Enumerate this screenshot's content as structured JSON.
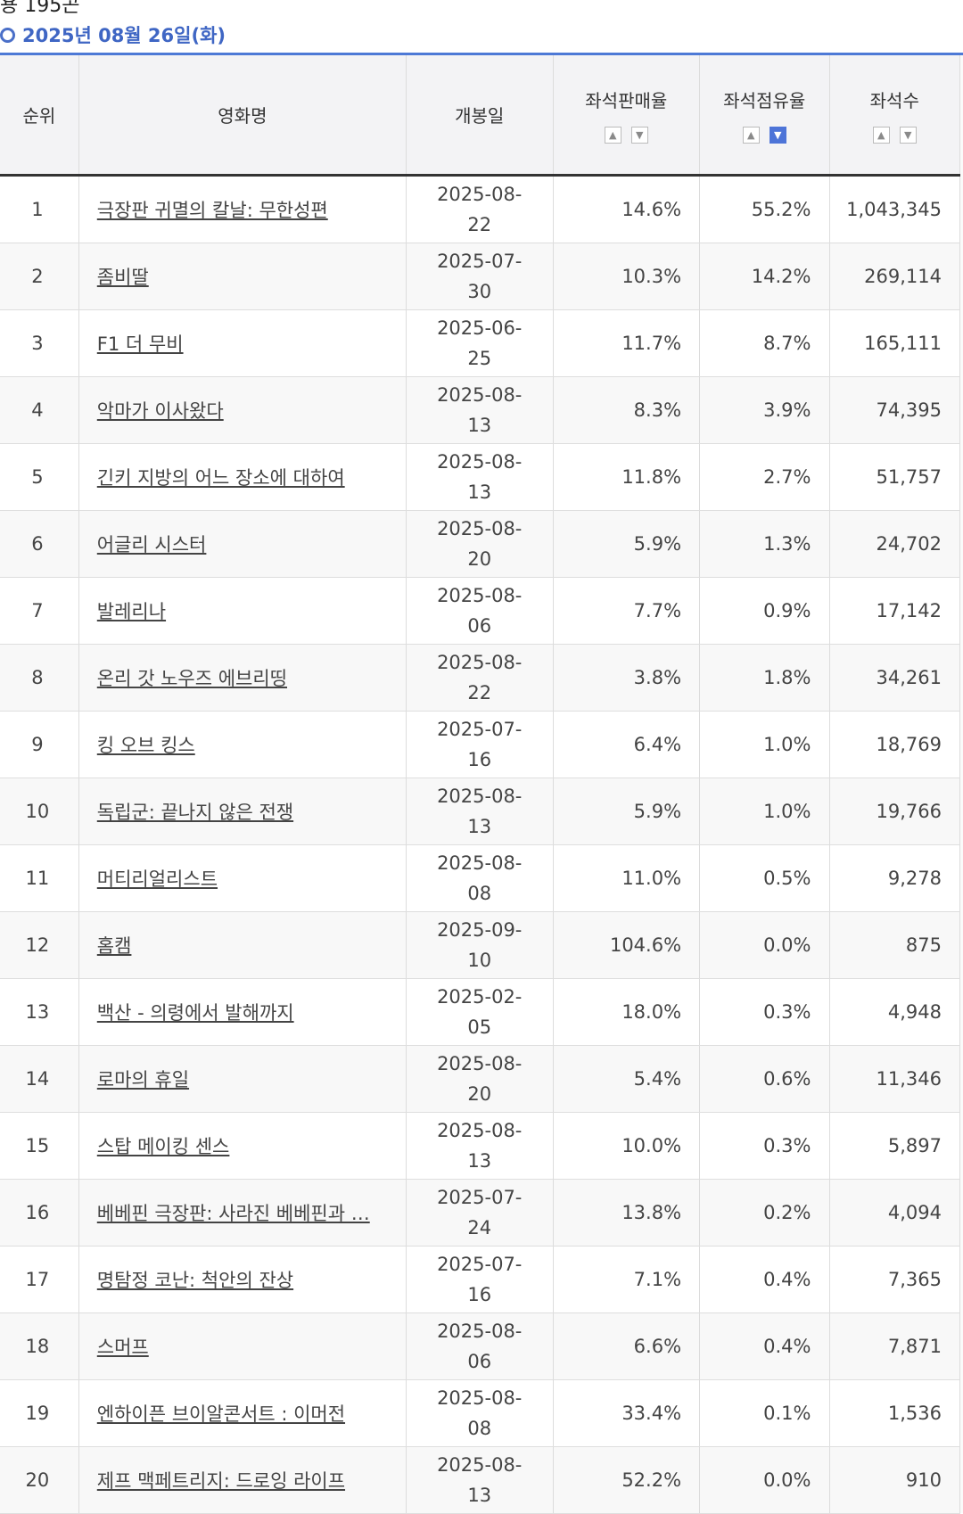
{
  "top_fragment": "용 195곤",
  "date_header": "2025년 08월 26일(화)",
  "columns": {
    "rank": "순위",
    "title": "영화명",
    "release": "개봉일",
    "sales_rate": "좌석판매율",
    "seat_share": "좌석점유율",
    "seats": "좌석수"
  },
  "sort_icons": {
    "up": "▲",
    "down": "▼"
  },
  "active_sort": "seat_share_desc",
  "rows": [
    {
      "rank": "1",
      "title": "극장판 귀멸의 칼날: 무한성편",
      "release": "2025-08-22",
      "sales_rate": "14.6%",
      "seat_share": "55.2%",
      "seats": "1,043,345"
    },
    {
      "rank": "2",
      "title": "좀비딸",
      "release": "2025-07-30",
      "sales_rate": "10.3%",
      "seat_share": "14.2%",
      "seats": "269,114"
    },
    {
      "rank": "3",
      "title": "F1 더 무비",
      "release": "2025-06-25",
      "sales_rate": "11.7%",
      "seat_share": "8.7%",
      "seats": "165,111"
    },
    {
      "rank": "4",
      "title": "악마가 이사왔다",
      "release": "2025-08-13",
      "sales_rate": "8.3%",
      "seat_share": "3.9%",
      "seats": "74,395"
    },
    {
      "rank": "5",
      "title": "긴키 지방의 어느 장소에 대하여",
      "release": "2025-08-13",
      "sales_rate": "11.8%",
      "seat_share": "2.7%",
      "seats": "51,757"
    },
    {
      "rank": "6",
      "title": "어글리 시스터",
      "release": "2025-08-20",
      "sales_rate": "5.9%",
      "seat_share": "1.3%",
      "seats": "24,702"
    },
    {
      "rank": "7",
      "title": "발레리나",
      "release": "2025-08-06",
      "sales_rate": "7.7%",
      "seat_share": "0.9%",
      "seats": "17,142"
    },
    {
      "rank": "8",
      "title": "온리 갓 노우즈 에브리띵",
      "release": "2025-08-22",
      "sales_rate": "3.8%",
      "seat_share": "1.8%",
      "seats": "34,261"
    },
    {
      "rank": "9",
      "title": "킹 오브 킹스",
      "release": "2025-07-16",
      "sales_rate": "6.4%",
      "seat_share": "1.0%",
      "seats": "18,769"
    },
    {
      "rank": "10",
      "title": "독립군: 끝나지 않은 전쟁",
      "release": "2025-08-13",
      "sales_rate": "5.9%",
      "seat_share": "1.0%",
      "seats": "19,766"
    },
    {
      "rank": "11",
      "title": "머티리얼리스트",
      "release": "2025-08-08",
      "sales_rate": "11.0%",
      "seat_share": "0.5%",
      "seats": "9,278"
    },
    {
      "rank": "12",
      "title": "홈캠",
      "release": "2025-09-10",
      "sales_rate": "104.6%",
      "seat_share": "0.0%",
      "seats": "875"
    },
    {
      "rank": "13",
      "title": "백산 - 의령에서 발해까지",
      "release": "2025-02-05",
      "sales_rate": "18.0%",
      "seat_share": "0.3%",
      "seats": "4,948"
    },
    {
      "rank": "14",
      "title": "로마의 휴일",
      "release": "2025-08-20",
      "sales_rate": "5.4%",
      "seat_share": "0.6%",
      "seats": "11,346"
    },
    {
      "rank": "15",
      "title": "스탑 메이킹 센스",
      "release": "2025-08-13",
      "sales_rate": "10.0%",
      "seat_share": "0.3%",
      "seats": "5,897"
    },
    {
      "rank": "16",
      "title": "베베핀 극장판: 사라진 베베핀과 …",
      "release": "2025-07-24",
      "sales_rate": "13.8%",
      "seat_share": "0.2%",
      "seats": "4,094"
    },
    {
      "rank": "17",
      "title": "명탐정 코난: 척안의 잔상",
      "release": "2025-07-16",
      "sales_rate": "7.1%",
      "seat_share": "0.4%",
      "seats": "7,365"
    },
    {
      "rank": "18",
      "title": "스머프",
      "release": "2025-08-06",
      "sales_rate": "6.6%",
      "seat_share": "0.4%",
      "seats": "7,871"
    },
    {
      "rank": "19",
      "title": "엔하이픈 브이알콘서트 : 이머전",
      "release": "2025-08-08",
      "sales_rate": "33.4%",
      "seat_share": "0.1%",
      "seats": "1,536"
    },
    {
      "rank": "20",
      "title": "제프 맥페트리지: 드로잉 라이프",
      "release": "2025-08-13",
      "sales_rate": "52.2%",
      "seat_share": "0.0%",
      "seats": "910"
    }
  ]
}
